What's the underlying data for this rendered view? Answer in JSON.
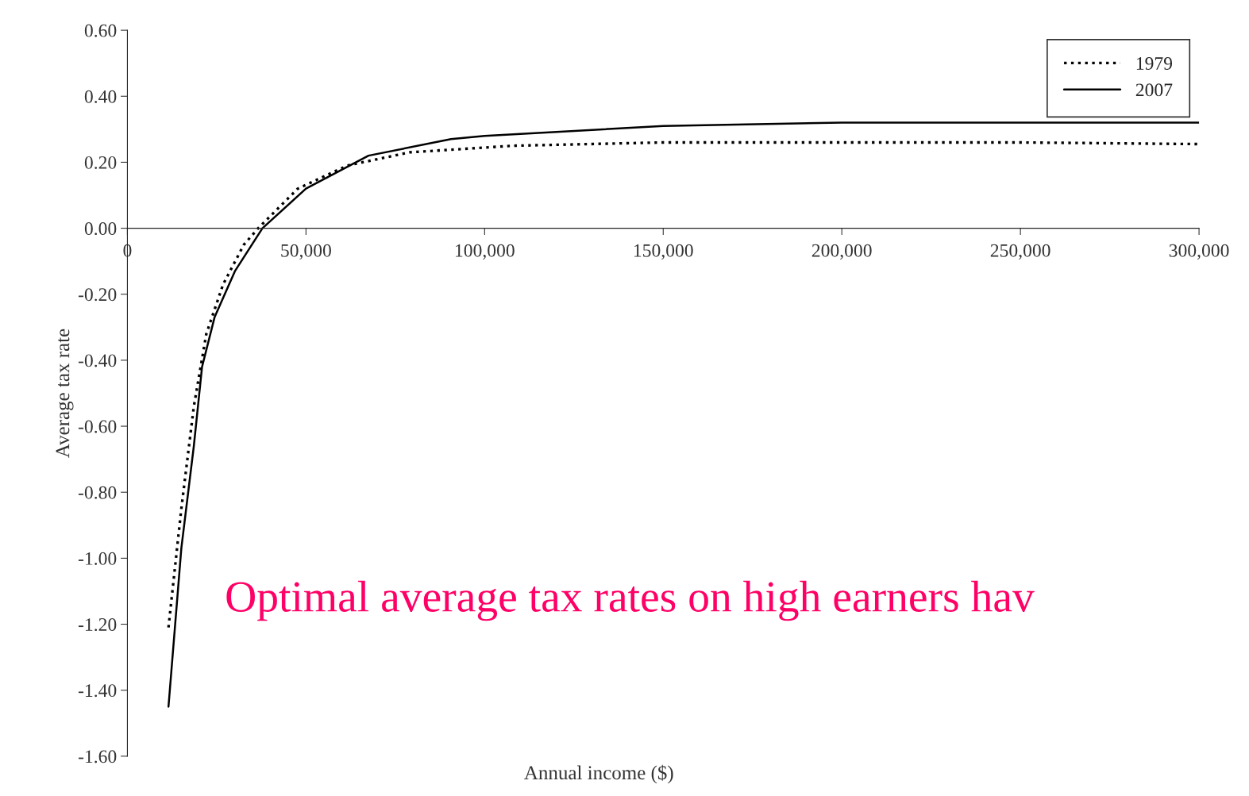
{
  "chart_data": {
    "type": "line",
    "xlabel": "Annual income ($)",
    "ylabel": "Average tax rate",
    "annotations": [
      "Optimal average tax rates on high earners hav"
    ],
    "xlim": [
      0,
      300000
    ],
    "ylim": [
      -1.6,
      0.6
    ],
    "xticks": [
      0,
      {
        "value": 50000,
        "label": "50,000"
      },
      {
        "value": 100000,
        "label": "100,000"
      },
      {
        "value": 150000,
        "label": "150,000"
      },
      {
        "value": 200000,
        "label": "200,000"
      },
      {
        "value": 250000,
        "label": "250,000"
      },
      {
        "value": 300000,
        "label": "300,000"
      }
    ],
    "yticks": [
      {
        "value": 0.6,
        "label": "0.60"
      },
      {
        "value": 0.4,
        "label": "0.40"
      },
      {
        "value": 0.2,
        "label": "0.20"
      },
      {
        "value": 0,
        "label": "0.00"
      },
      {
        "value": -0.2,
        "label": "-0.20"
      },
      {
        "value": -0.4,
        "label": "-0.40"
      },
      {
        "value": -0.6,
        "label": "-0.60"
      },
      {
        "value": -0.8,
        "label": "-0.80"
      },
      {
        "value": -1.0,
        "label": "-1.00"
      },
      {
        "value": -1.2,
        "label": "-1.20"
      },
      {
        "value": -1.4,
        "label": "-1.40"
      },
      {
        "value": -1.6,
        "label": "-1.60"
      }
    ],
    "grid": false,
    "legend": "top right",
    "marker": "none",
    "series": [
      {
        "name": "1979",
        "color": "#000000",
        "line_style": "dotted",
        "x": [
          11500,
          15100,
          18600,
          22100,
          26800,
          32600,
          36600,
          47700,
          61600,
          79000,
          108000,
          150000,
          200000,
          250000,
          300000
        ],
        "values": [
          -1.21,
          -0.85,
          -0.54,
          -0.32,
          -0.17,
          -0.05,
          0.0,
          0.12,
          0.19,
          0.23,
          0.25,
          0.26,
          0.26,
          0.26,
          0.255
        ]
      },
      {
        "name": "2007",
        "color": "#000000",
        "line_style": "solid",
        "x": [
          11500,
          15100,
          18600,
          20900,
          24400,
          30100,
          37800,
          50000,
          67500,
          90600,
          100000,
          150000,
          200000,
          250000,
          300000
        ],
        "values": [
          -1.45,
          -0.97,
          -0.66,
          -0.42,
          -0.27,
          -0.13,
          0.0,
          0.12,
          0.22,
          0.27,
          0.28,
          0.31,
          0.32,
          0.32,
          0.32
        ]
      }
    ]
  }
}
